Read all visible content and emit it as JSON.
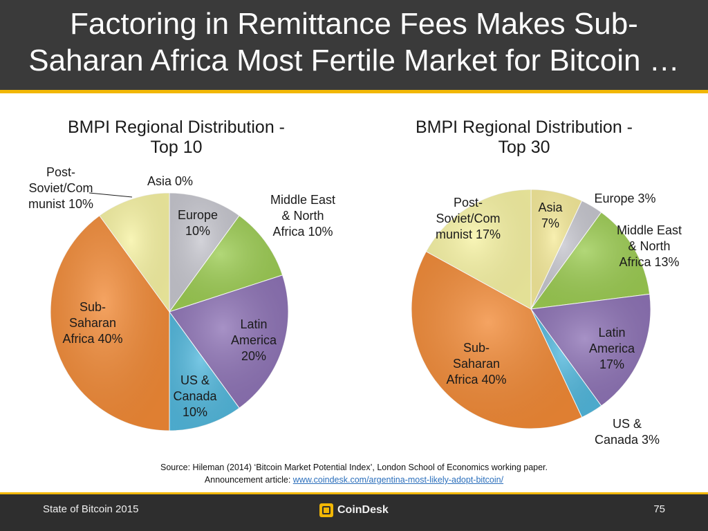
{
  "slide": {
    "title_line1": "Factoring in Remittance Fees Makes Sub-",
    "title_line2": "Saharan Africa Most Fertile Market for Bitcoin …"
  },
  "colors": {
    "header_bg": "#3a3a3a",
    "accent": "#f2b705",
    "footer_bg": "#2e2e2e"
  },
  "chart_data": [
    {
      "type": "pie",
      "title_line1": "BMPI Regional Distribution -",
      "title_line2": "Top 10",
      "start": "12 o'clock",
      "direction": "clockwise",
      "slices": [
        {
          "key": "asia",
          "label_lines": [
            "Asia 0%"
          ],
          "value": 0,
          "color": "#f6eb9a"
        },
        {
          "key": "europe",
          "label_lines": [
            "Europe",
            "10%"
          ],
          "value": 10,
          "color": "#c7c7cf"
        },
        {
          "key": "mena",
          "label_lines": [
            "Middle East",
            "& North",
            "Africa 10%"
          ],
          "value": 10,
          "color": "#9ccc52"
        },
        {
          "key": "latam",
          "label_lines": [
            "Latin",
            "America",
            "20%"
          ],
          "value": 20,
          "color": "#8e73b6"
        },
        {
          "key": "us_canada",
          "label_lines": [
            "US &",
            "Canada",
            "10%"
          ],
          "value": 10,
          "color": "#52b8dd"
        },
        {
          "key": "ssa",
          "label_lines": [
            "Sub-",
            "Saharan",
            "Africa 40%"
          ],
          "value": 40,
          "color": "#f28a36"
        },
        {
          "key": "post_soviet",
          "label_lines": [
            "Post-",
            "Soviet/Com",
            "munist 10%"
          ],
          "value": 10,
          "color": "#f7f3a3"
        }
      ]
    },
    {
      "type": "pie",
      "title_line1": "BMPI Regional Distribution -",
      "title_line2": "Top 30",
      "start": "12 o'clock",
      "direction": "clockwise",
      "slices": [
        {
          "key": "asia",
          "label_lines": [
            "Asia",
            "7%"
          ],
          "value": 7,
          "color": "#f6eb9a"
        },
        {
          "key": "europe",
          "label_lines": [
            "Europe 3%"
          ],
          "value": 3,
          "color": "#c7c7cf"
        },
        {
          "key": "mena",
          "label_lines": [
            "Middle East",
            "& North",
            "Africa 13%"
          ],
          "value": 13,
          "color": "#9ccc52"
        },
        {
          "key": "latam",
          "label_lines": [
            "Latin",
            "America",
            "17%"
          ],
          "value": 17,
          "color": "#8e73b6"
        },
        {
          "key": "us_canada",
          "label_lines": [
            "US &",
            "Canada 3%"
          ],
          "value": 3,
          "color": "#52b8dd"
        },
        {
          "key": "ssa",
          "label_lines": [
            "Sub-",
            "Saharan",
            "Africa 40%"
          ],
          "value": 40,
          "color": "#f28a36"
        },
        {
          "key": "post_soviet",
          "label_lines": [
            "Post-",
            "Soviet/Com",
            "munist 17%"
          ],
          "value": 17,
          "color": "#f7f3a3"
        }
      ]
    }
  ],
  "source": {
    "line1": "Source: Hileman (2014) ‘Bitcoin Market Potential Index’, London School of Economics working paper.",
    "line2_prefix": "Announcement article: ",
    "link_text": "www.coindesk.com/argentina-most-likely-adopt-bitcoin/"
  },
  "footer": {
    "left": "State of Bitcoin 2015",
    "brand": "CoinDesk",
    "page": "75"
  }
}
